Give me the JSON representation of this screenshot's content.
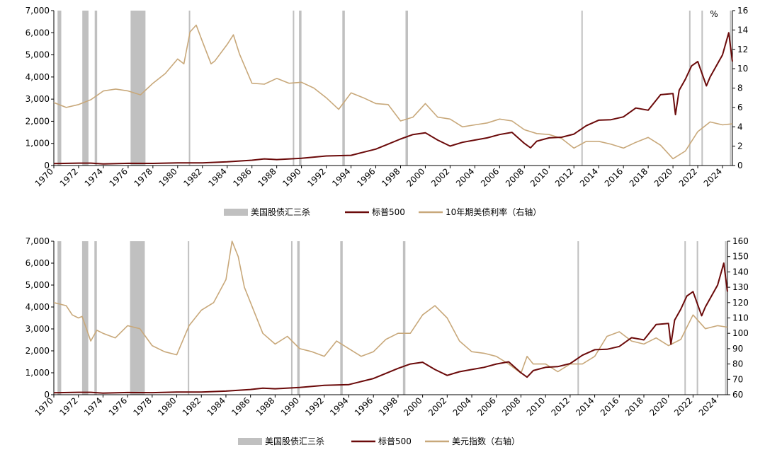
{
  "colors": {
    "sp500": "#6b0a0a",
    "secondary": "#c8a87a",
    "crash_band": "#c0c0c0",
    "axis": "#000000"
  },
  "chart_data": [
    {
      "type": "line",
      "x_range": [
        1970,
        2024.8
      ],
      "x_ticks": [
        "1970",
        "1972",
        "1974",
        "1976",
        "1978",
        "1980",
        "1982",
        "1984",
        "1986",
        "1988",
        "1990",
        "1992",
        "1994",
        "1996",
        "1998",
        "2000",
        "2002",
        "2004",
        "2006",
        "2008",
        "2010",
        "2012",
        "2014",
        "2016",
        "2018",
        "2020",
        "2022",
        "2024"
      ],
      "ylim_left": [
        0,
        7000
      ],
      "ylim_right": [
        0,
        16
      ],
      "y_ticks_left": [
        "0",
        "1,000",
        "2,000",
        "3,000",
        "4,000",
        "5,000",
        "6,000",
        "7,000"
      ],
      "y_ticks_right": [
        "0",
        "2",
        "4",
        "6",
        "8",
        "10",
        "12",
        "14",
        "16"
      ],
      "right_unit": "%",
      "legend": {
        "bands": "美国股债汇三杀",
        "sp500": "标普500",
        "secondary": "10年期美债利率（右轴）"
      },
      "bands": [
        [
          1970.3,
          1970.6
        ],
        [
          1972.3,
          1972.8
        ],
        [
          1973.3,
          1973.5
        ],
        [
          1976.2,
          1977.4
        ],
        [
          1980.9,
          1981.0
        ],
        [
          1989.3,
          1989.4
        ],
        [
          1989.8,
          1990.0
        ],
        [
          1993.3,
          1993.5
        ],
        [
          1998.4,
          1998.6
        ],
        [
          2012.6,
          2012.7
        ],
        [
          2021.3,
          2021.4
        ],
        [
          2022.3,
          2022.4
        ],
        [
          2024.6,
          2024.7
        ]
      ],
      "series": [
        {
          "key": "sp500",
          "name": "标普500",
          "axis": "left",
          "x": [
            1970,
            1972,
            1973,
            1974,
            1976,
            1978,
            1980,
            1982,
            1984,
            1986,
            1987,
            1988,
            1990,
            1992,
            1994,
            1995,
            1996,
            1997,
            1998,
            1999,
            2000,
            2001,
            2002,
            2003,
            2004,
            2005,
            2006,
            2007,
            2008,
            2008.5,
            2009,
            2010,
            2011,
            2012,
            2013,
            2014,
            2015,
            2016,
            2017,
            2018,
            2019,
            2020,
            2020.2,
            2020.5,
            2021,
            2021.5,
            2022,
            2022.7,
            2023,
            2024,
            2024.5,
            2024.8
          ],
          "y": [
            90,
            110,
            110,
            70,
            100,
            95,
            120,
            120,
            165,
            240,
            300,
            270,
            330,
            430,
            460,
            600,
            740,
            970,
            1200,
            1400,
            1480,
            1150,
            880,
            1050,
            1150,
            1250,
            1400,
            1500,
            1000,
            800,
            1100,
            1250,
            1280,
            1420,
            1800,
            2050,
            2070,
            2200,
            2600,
            2500,
            3200,
            3250,
            2300,
            3400,
            3900,
            4500,
            4700,
            3600,
            4000,
            5000,
            6000,
            4700
          ]
        },
        {
          "key": "secondary",
          "name": "10年期美债利率（右轴）",
          "axis": "right",
          "x": [
            1970,
            1971,
            1972,
            1973,
            1974,
            1975,
            1976,
            1977,
            1978,
            1979,
            1980,
            1980.5,
            1981,
            1981.5,
            1982,
            1982.7,
            1983,
            1984,
            1984.5,
            1985,
            1986,
            1987,
            1988,
            1989,
            1990,
            1991,
            1992,
            1993,
            1994,
            1995,
            1996,
            1997,
            1998,
            1999,
            2000,
            2001,
            2002,
            2003,
            2004,
            2005,
            2006,
            2007,
            2008,
            2009,
            2010,
            2011,
            2012,
            2013,
            2014,
            2015,
            2016,
            2017,
            2018,
            2019,
            2020,
            2021,
            2022,
            2023,
            2024,
            2024.8
          ],
          "y": [
            6.5,
            6.0,
            6.3,
            6.8,
            7.7,
            7.9,
            7.7,
            7.3,
            8.5,
            9.5,
            11.0,
            10.5,
            13.8,
            14.5,
            12.8,
            10.5,
            10.8,
            12.5,
            13.5,
            11.5,
            8.5,
            8.4,
            9.0,
            8.5,
            8.6,
            8.0,
            7.0,
            5.8,
            7.5,
            7.0,
            6.4,
            6.3,
            4.6,
            5.0,
            6.4,
            5.0,
            4.8,
            4.0,
            4.2,
            4.4,
            4.8,
            4.6,
            3.7,
            3.3,
            3.2,
            2.8,
            1.8,
            2.5,
            2.5,
            2.2,
            1.8,
            2.4,
            2.9,
            2.1,
            0.7,
            1.5,
            3.5,
            4.5,
            4.2,
            4.3
          ]
        }
      ]
    },
    {
      "type": "line",
      "x_range": [
        1970,
        2024.8
      ],
      "x_ticks": [
        "1970",
        "1972",
        "1974",
        "1976",
        "1978",
        "1980",
        "1982",
        "1984",
        "1986",
        "1988",
        "1990",
        "1992",
        "1994",
        "1996",
        "1998",
        "2000",
        "2002",
        "2004",
        "2006",
        "2008",
        "2010",
        "2012",
        "2014",
        "2016",
        "2018",
        "2020",
        "2022",
        "2024"
      ],
      "ylim_left": [
        0,
        7000
      ],
      "ylim_right": [
        60,
        160
      ],
      "y_ticks_left": [
        "0",
        "1,000",
        "2,000",
        "3,000",
        "4,000",
        "5,000",
        "6,000",
        "7,000"
      ],
      "y_ticks_right": [
        "60",
        "70",
        "80",
        "90",
        "100",
        "110",
        "120",
        "130",
        "140",
        "150",
        "160"
      ],
      "legend": {
        "bands": "美国股债汇三杀",
        "sp500": "标普500",
        "secondary": "美元指数（右轴）"
      },
      "bands": [
        [
          1970.3,
          1970.6
        ],
        [
          1972.3,
          1972.8
        ],
        [
          1973.3,
          1973.5
        ],
        [
          1976.2,
          1977.4
        ],
        [
          1980.9,
          1981.0
        ],
        [
          1989.3,
          1989.4
        ],
        [
          1989.8,
          1990.0
        ],
        [
          1993.3,
          1993.5
        ],
        [
          1998.4,
          1998.6
        ],
        [
          2012.6,
          2012.7
        ],
        [
          2021.3,
          2021.4
        ],
        [
          2022.3,
          2022.4
        ],
        [
          2024.6,
          2024.7
        ]
      ],
      "series": [
        {
          "key": "sp500",
          "name": "标普500",
          "axis": "left",
          "x": [
            1970,
            1972,
            1973,
            1974,
            1976,
            1978,
            1980,
            1982,
            1984,
            1986,
            1987,
            1988,
            1990,
            1992,
            1994,
            1995,
            1996,
            1997,
            1998,
            1999,
            2000,
            2001,
            2002,
            2003,
            2004,
            2005,
            2006,
            2007,
            2008,
            2008.5,
            2009,
            2010,
            2011,
            2012,
            2013,
            2014,
            2015,
            2016,
            2017,
            2018,
            2019,
            2020,
            2020.2,
            2020.5,
            2021,
            2021.5,
            2022,
            2022.7,
            2023,
            2024,
            2024.5,
            2024.8
          ],
          "y": [
            90,
            110,
            110,
            70,
            100,
            95,
            120,
            120,
            165,
            240,
            300,
            270,
            330,
            430,
            460,
            600,
            740,
            970,
            1200,
            1400,
            1480,
            1150,
            880,
            1050,
            1150,
            1250,
            1400,
            1500,
            1000,
            800,
            1100,
            1250,
            1280,
            1420,
            1800,
            2050,
            2070,
            2200,
            2600,
            2500,
            3200,
            3250,
            2300,
            3400,
            3900,
            4500,
            4700,
            3600,
            4000,
            5000,
            6000,
            4700
          ]
        },
        {
          "key": "secondary",
          "name": "美元指数（右轴）",
          "axis": "right",
          "x": [
            1970,
            1971,
            1971.5,
            1972,
            1972.3,
            1973,
            1973.5,
            1974,
            1975,
            1976,
            1977,
            1978,
            1979,
            1980,
            1981,
            1982,
            1983,
            1984,
            1984.5,
            1985,
            1985.5,
            1986,
            1987,
            1988,
            1989,
            1990,
            1991,
            1992,
            1993,
            1994,
            1995,
            1996,
            1997,
            1998,
            1999,
            2000,
            2001,
            2002,
            2003,
            2004,
            2005,
            2006,
            2007,
            2008,
            2008.5,
            2009,
            2010,
            2011,
            2012,
            2013,
            2014,
            2015,
            2016,
            2017,
            2018,
            2019,
            2020,
            2021,
            2022,
            2023,
            2024,
            2024.8
          ],
          "y": [
            120,
            118,
            112,
            110,
            111,
            95,
            102,
            100,
            97,
            105,
            103,
            92,
            88,
            86,
            105,
            115,
            120,
            135,
            160,
            150,
            130,
            120,
            100,
            93,
            98,
            90,
            88,
            85,
            95,
            90,
            85,
            88,
            96,
            100,
            100,
            112,
            118,
            110,
            95,
            88,
            87,
            85,
            80,
            74,
            85,
            80,
            80,
            75,
            80,
            80,
            85,
            98,
            101,
            95,
            93,
            97,
            92,
            96,
            112,
            103,
            105,
            104
          ]
        }
      ]
    }
  ]
}
